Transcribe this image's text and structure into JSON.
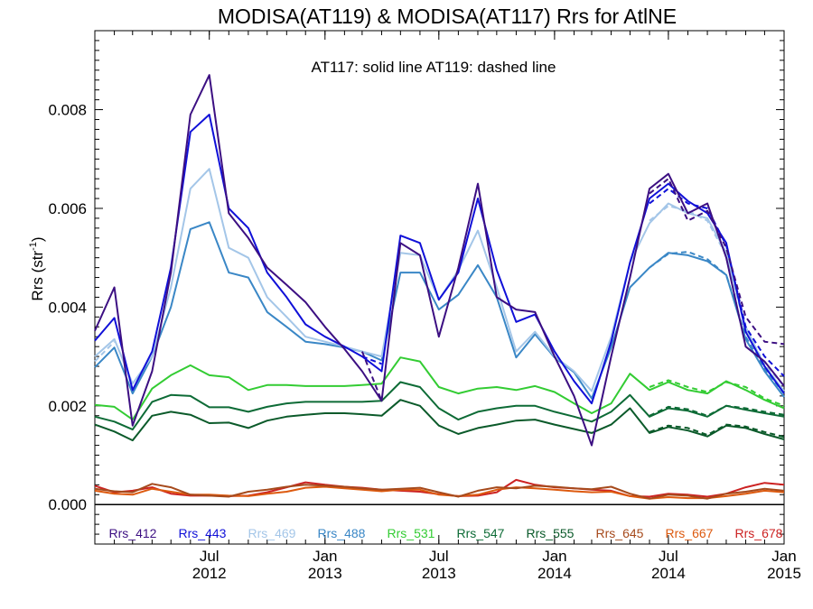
{
  "chart_data": {
    "type": "line",
    "title": "MODISA(AT119) & MODISA(AT117)  Rrs for AtlNE",
    "subtitle": "AT117: solid line   AT119: dashed line",
    "ylabel": "Rrs (str",
    "ylabel_exponent": "-1",
    "ylabel_close": ")",
    "ylim": [
      -0.0008,
      0.0096
    ],
    "yticks": [
      "0.000",
      "0.002",
      "0.004",
      "0.006",
      "0.008"
    ],
    "xlim": [
      "2012-01-01",
      "2015-01-01"
    ],
    "xticks": [
      {
        "date": "2012-07-01",
        "line1": "Jul",
        "line2": "2012"
      },
      {
        "date": "2013-01-01",
        "line1": "Jan",
        "line2": "2013"
      },
      {
        "date": "2013-07-01",
        "line1": "Jul",
        "line2": "2013"
      },
      {
        "date": "2014-01-01",
        "line1": "Jan",
        "line2": "2014"
      },
      {
        "date": "2014-07-01",
        "line1": "Jul",
        "line2": "2014"
      },
      {
        "date": "2015-01-01",
        "line1": "Jan",
        "line2": "2015"
      }
    ],
    "zero_line": true,
    "grid": false,
    "legend_placement": "bottom, inside plot",
    "x": [
      "2012-01-01",
      "2012-02-01",
      "2012-03-01",
      "2012-04-01",
      "2012-05-01",
      "2012-06-01",
      "2012-07-01",
      "2012-08-01",
      "2012-09-01",
      "2012-10-01",
      "2012-11-01",
      "2012-12-01",
      "2013-01-01",
      "2013-02-01",
      "2013-03-01",
      "2013-04-01",
      "2013-05-01",
      "2013-06-01",
      "2013-07-01",
      "2013-08-01",
      "2013-09-01",
      "2013-10-01",
      "2013-11-01",
      "2013-12-01",
      "2014-01-01",
      "2014-02-01",
      "2014-03-01",
      "2014-04-01",
      "2014-05-01",
      "2014-06-01",
      "2014-07-01",
      "2014-08-01",
      "2014-09-01",
      "2014-10-01",
      "2014-11-01",
      "2014-12-01",
      "2015-01-01"
    ],
    "series": [
      {
        "name": "Rrs_412",
        "color": "#3c0f82",
        "solid": [
          0.00352,
          0.0044,
          0.0016,
          0.0027,
          0.0047,
          0.0079,
          0.0087,
          0.0059,
          0.0054,
          0.0048,
          0.00445,
          0.0041,
          0.0036,
          0.00315,
          0.0027,
          0.0021,
          0.0053,
          0.00505,
          0.0034,
          0.0048,
          0.0065,
          0.0042,
          0.00395,
          0.0039,
          0.003,
          0.0022,
          0.0012,
          0.003,
          0.0046,
          0.0064,
          0.0067,
          0.0059,
          0.0061,
          0.005,
          0.0032,
          0.0029,
          0.0024
        ],
        "dashed": [
          null,
          null,
          null,
          null,
          null,
          null,
          null,
          null,
          null,
          null,
          null,
          null,
          null,
          null,
          0.0031,
          0.0021,
          null,
          null,
          null,
          null,
          null,
          null,
          null,
          null,
          null,
          null,
          null,
          null,
          null,
          0.0063,
          0.0066,
          0.00575,
          0.00595,
          0.0052,
          0.0038,
          0.0033,
          0.00325
        ]
      },
      {
        "name": "Rrs_443",
        "color": "#1010d8",
        "solid": [
          0.00332,
          0.00378,
          0.00232,
          0.0031,
          0.0048,
          0.00755,
          0.0079,
          0.006,
          0.0056,
          0.0047,
          0.0042,
          0.00365,
          0.0034,
          0.0032,
          0.003,
          0.0027,
          0.00545,
          0.0053,
          0.00415,
          0.0047,
          0.0062,
          0.00475,
          0.0037,
          0.00385,
          0.0031,
          0.0025,
          0.00205,
          0.0033,
          0.0049,
          0.0062,
          0.0065,
          0.00615,
          0.0059,
          0.0053,
          0.0035,
          0.0028,
          0.00225
        ],
        "dashed": [
          null,
          null,
          null,
          null,
          null,
          null,
          null,
          null,
          null,
          null,
          null,
          null,
          null,
          null,
          0.003,
          0.00285,
          null,
          null,
          null,
          null,
          null,
          null,
          null,
          null,
          null,
          null,
          null,
          null,
          null,
          0.0061,
          0.0064,
          0.0061,
          0.006,
          0.00525,
          0.0036,
          0.003,
          0.0026
        ]
      },
      {
        "name": "Rrs_469",
        "color": "#a4c6e8",
        "solid": [
          0.003,
          0.00335,
          0.00245,
          0.003,
          0.0044,
          0.0064,
          0.0068,
          0.0052,
          0.005,
          0.0042,
          0.0038,
          0.0034,
          0.0033,
          0.0032,
          0.0031,
          0.003,
          0.0051,
          0.00505,
          0.00415,
          0.00475,
          0.00555,
          0.0044,
          0.0031,
          0.0035,
          0.003,
          0.0027,
          0.0023,
          0.0034,
          0.0049,
          0.0057,
          0.0061,
          0.0059,
          0.0058,
          0.0051,
          0.0036,
          0.0028,
          0.0023
        ],
        "dashed": [
          0.0029,
          0.0033,
          null,
          null,
          null,
          null,
          null,
          null,
          null,
          null,
          null,
          null,
          null,
          null,
          null,
          null,
          null,
          null,
          null,
          null,
          null,
          null,
          null,
          null,
          null,
          null,
          null,
          null,
          null,
          0.00575,
          0.00605,
          0.00595,
          0.00575,
          0.00505,
          0.00355,
          0.00285,
          0.0024
        ]
      },
      {
        "name": "Rrs_488",
        "color": "#3a87c6",
        "solid": [
          0.00278,
          0.00318,
          0.00225,
          0.003,
          0.004,
          0.00558,
          0.00572,
          0.0047,
          0.0046,
          0.0039,
          0.0036,
          0.0033,
          0.00325,
          0.00318,
          0.0031,
          0.00292,
          0.0047,
          0.0047,
          0.00395,
          0.00425,
          0.00485,
          0.0042,
          0.00298,
          0.00345,
          0.00298,
          0.00268,
          0.00215,
          0.00318,
          0.0044,
          0.0048,
          0.0051,
          0.00505,
          0.00493,
          0.00465,
          0.00335,
          0.0027,
          0.00218
        ],
        "dashed": [
          null,
          null,
          null,
          null,
          null,
          null,
          null,
          null,
          null,
          null,
          null,
          null,
          null,
          null,
          null,
          null,
          null,
          null,
          null,
          null,
          null,
          null,
          null,
          null,
          null,
          null,
          null,
          null,
          null,
          0.0048,
          0.00508,
          0.00512,
          0.00497,
          0.00465,
          0.0034,
          0.00275,
          0.00225
        ]
      },
      {
        "name": "Rrs_531",
        "color": "#33cc33",
        "solid": [
          0.00202,
          0.00198,
          0.00172,
          0.00235,
          0.00262,
          0.00282,
          0.00262,
          0.00258,
          0.00232,
          0.00242,
          0.00242,
          0.0024,
          0.0024,
          0.0024,
          0.00242,
          0.00245,
          0.00298,
          0.0029,
          0.00238,
          0.00225,
          0.00235,
          0.00238,
          0.00232,
          0.0024,
          0.00228,
          0.00205,
          0.00185,
          0.00205,
          0.00265,
          0.00232,
          0.00248,
          0.00232,
          0.00225,
          0.0025,
          0.00232,
          0.00212,
          0.00195
        ],
        "dashed": [
          null,
          null,
          null,
          null,
          null,
          null,
          null,
          null,
          null,
          null,
          null,
          null,
          null,
          null,
          null,
          null,
          null,
          null,
          null,
          null,
          null,
          null,
          null,
          null,
          null,
          null,
          null,
          null,
          null,
          0.00238,
          0.00252,
          0.00238,
          0.00228,
          0.00248,
          0.00238,
          0.00215,
          0.002
        ]
      },
      {
        "name": "Rrs_547",
        "color": "#0d6b36",
        "solid": [
          0.00178,
          0.00168,
          0.00152,
          0.00208,
          0.00222,
          0.0022,
          0.00197,
          0.00197,
          0.00188,
          0.00198,
          0.00205,
          0.00208,
          0.00208,
          0.00208,
          0.00208,
          0.0021,
          0.00248,
          0.00238,
          0.00195,
          0.00172,
          0.00188,
          0.00195,
          0.002,
          0.002,
          0.00188,
          0.00178,
          0.00168,
          0.00188,
          0.00222,
          0.00178,
          0.00195,
          0.0019,
          0.00178,
          0.002,
          0.00192,
          0.00185,
          0.00178
        ],
        "dashed": [
          null,
          null,
          null,
          null,
          null,
          null,
          null,
          null,
          null,
          null,
          null,
          null,
          null,
          null,
          null,
          null,
          null,
          null,
          null,
          null,
          null,
          null,
          null,
          null,
          null,
          null,
          null,
          null,
          null,
          0.0018,
          0.00198,
          0.00193,
          0.0018,
          0.002,
          0.00195,
          0.00188,
          0.00182
        ]
      },
      {
        "name": "Rrs_555",
        "color": "#0b5a2a",
        "solid": [
          0.00162,
          0.00148,
          0.0013,
          0.0018,
          0.00188,
          0.00182,
          0.00165,
          0.00166,
          0.00155,
          0.0017,
          0.00178,
          0.00182,
          0.00185,
          0.00185,
          0.00183,
          0.0018,
          0.00212,
          0.002,
          0.0016,
          0.00143,
          0.00155,
          0.00162,
          0.0017,
          0.00172,
          0.00162,
          0.00153,
          0.00145,
          0.00162,
          0.00195,
          0.00145,
          0.00157,
          0.0015,
          0.00138,
          0.0016,
          0.00155,
          0.00143,
          0.00132
        ],
        "dashed": [
          null,
          null,
          null,
          null,
          null,
          null,
          null,
          null,
          null,
          null,
          null,
          null,
          null,
          null,
          null,
          null,
          null,
          null,
          null,
          null,
          null,
          null,
          null,
          null,
          null,
          null,
          null,
          null,
          null,
          0.00147,
          0.0016,
          0.00155,
          0.00141,
          0.00162,
          0.00158,
          0.00147,
          0.00137
        ]
      },
      {
        "name": "Rrs_645",
        "color": "#a64a1c",
        "solid": [
          0.00032,
          0.00027,
          0.00025,
          0.00042,
          0.00035,
          0.0002,
          0.00018,
          0.00016,
          0.00026,
          0.0003,
          0.00036,
          0.0004,
          0.00038,
          0.00036,
          0.00033,
          0.0003,
          0.00032,
          0.00034,
          0.00025,
          0.00016,
          0.00028,
          0.00035,
          0.00033,
          0.00038,
          0.00036,
          0.00033,
          0.00031,
          0.00036,
          0.00022,
          0.00012,
          0.0002,
          0.00018,
          0.00012,
          0.00022,
          0.00026,
          0.00032,
          0.00028
        ],
        "dashed": []
      },
      {
        "name": "Rrs_667",
        "color": "#dd5a0f",
        "solid": [
          0.00028,
          0.00022,
          0.0002,
          0.00032,
          0.00026,
          0.0002,
          0.0002,
          0.00018,
          0.00017,
          0.00022,
          0.00026,
          0.00034,
          0.00036,
          0.00033,
          0.0003,
          0.00027,
          0.0003,
          0.0003,
          0.0002,
          0.00017,
          0.0002,
          0.0003,
          0.00035,
          0.00033,
          0.0003,
          0.00027,
          0.00025,
          0.00026,
          0.00017,
          0.00012,
          0.00015,
          0.00013,
          0.00013,
          0.00017,
          0.00022,
          0.00028,
          0.00025
        ],
        "dashed": []
      },
      {
        "name": "Rrs_678",
        "color": "#cc2222",
        "solid": [
          0.00038,
          0.00025,
          0.00028,
          0.00035,
          0.00022,
          0.00018,
          0.00018,
          0.00017,
          0.00018,
          0.00025,
          0.00035,
          0.00045,
          0.0004,
          0.00036,
          0.00034,
          0.0003,
          0.00028,
          0.00026,
          0.00021,
          0.00017,
          0.00018,
          0.00025,
          0.0005,
          0.0004,
          0.00035,
          0.00033,
          0.0003,
          0.00028,
          0.00017,
          0.00016,
          0.00022,
          0.0002,
          0.00016,
          0.00022,
          0.00035,
          0.00044,
          0.0004
        ],
        "dashed": []
      }
    ]
  }
}
